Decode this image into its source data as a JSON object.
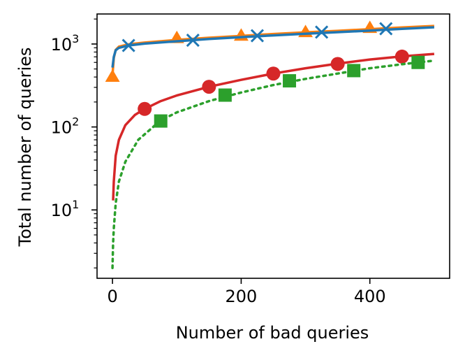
{
  "chart_data": {
    "type": "line",
    "xlabel": "Number of bad queries",
    "ylabel": "Total number of queries",
    "xlim": [
      -24,
      524
    ],
    "ylim": [
      1.5,
      2300
    ],
    "yscale": "log",
    "x_ticks": [
      {
        "value": 0,
        "label": "0"
      },
      {
        "value": 200,
        "label": "200"
      },
      {
        "value": 400,
        "label": "400"
      }
    ],
    "y_ticks": [
      {
        "value": 10,
        "base": "10",
        "exp": "1"
      },
      {
        "value": 100,
        "base": "10",
        "exp": "2"
      },
      {
        "value": 1000,
        "base": "10",
        "exp": "3"
      }
    ],
    "grid": false,
    "legend": "none",
    "series": [
      {
        "color": "#ff7f0e",
        "line_style": "solid",
        "marker": "triangle",
        "line": {
          "x": [
            0,
            2,
            5,
            10,
            25,
            50,
            100,
            150,
            200,
            250,
            300,
            350,
            400,
            450,
            500
          ],
          "y": [
            420,
            680,
            850,
            930,
            990,
            1040,
            1120,
            1190,
            1250,
            1320,
            1380,
            1440,
            1510,
            1580,
            1650
          ]
        },
        "markers": {
          "x": [
            0,
            100,
            200,
            300,
            400
          ],
          "y": [
            400,
            1170,
            1250,
            1380,
            1550
          ]
        }
      },
      {
        "color": "#1f77b4",
        "line_style": "solid",
        "marker": "x",
        "line": {
          "x": [
            0,
            2,
            5,
            10,
            25,
            50,
            100,
            150,
            200,
            250,
            300,
            350,
            400,
            450,
            500
          ],
          "y": [
            520,
            700,
            840,
            900,
            960,
            1010,
            1080,
            1150,
            1210,
            1270,
            1330,
            1390,
            1450,
            1520,
            1590
          ]
        },
        "markers": {
          "x": [
            25,
            125,
            225,
            325,
            425
          ],
          "y": [
            960,
            1110,
            1260,
            1390,
            1530
          ]
        }
      },
      {
        "color": "#d62728",
        "line_style": "solid",
        "marker": "circle",
        "line": {
          "x": [
            1,
            2,
            5,
            10,
            20,
            35,
            50,
            75,
            100,
            150,
            200,
            250,
            300,
            350,
            400,
            450,
            500
          ],
          "y": [
            13,
            22,
            45,
            70,
            105,
            140,
            165,
            205,
            240,
            305,
            370,
            440,
            510,
            580,
            650,
            710,
            760
          ]
        },
        "markers": {
          "x": [
            50,
            150,
            250,
            350,
            450
          ],
          "y": [
            165,
            305,
            440,
            575,
            705
          ]
        }
      },
      {
        "color": "#2ca02c",
        "line_style": "dotted",
        "marker": "square",
        "line": {
          "x": [
            0,
            1,
            2,
            5,
            10,
            20,
            40,
            75,
            100,
            150,
            200,
            250,
            300,
            350,
            400,
            450,
            500
          ],
          "y": [
            2,
            4,
            6,
            12,
            22,
            38,
            70,
            120,
            150,
            205,
            260,
            320,
            380,
            440,
            510,
            570,
            630
          ]
        },
        "markers": {
          "x": [
            75,
            175,
            275,
            375,
            475
          ],
          "y": [
            118,
            242,
            360,
            478,
            600
          ]
        }
      }
    ]
  }
}
